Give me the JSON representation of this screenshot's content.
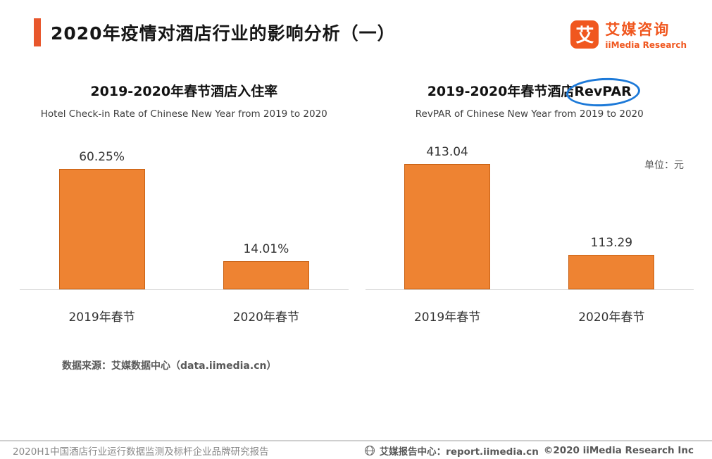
{
  "header": {
    "title": "2020年疫情对酒店行业的影响分析（一）",
    "logo": {
      "glyph": "艾",
      "brand_cn": "艾媒咨询",
      "brand_en": "iiMedia Research"
    }
  },
  "chart_data": [
    {
      "type": "bar",
      "title": "2019-2020年春节酒店入住率",
      "subtitle": "Hotel Check-in Rate of Chinese New Year from 2019 to 2020",
      "categories": [
        "2019年春节",
        "2020年春节"
      ],
      "values": [
        60.25,
        14.01
      ],
      "value_labels": [
        "60.25%",
        "14.01%"
      ],
      "ylabel": "",
      "xlabel": "",
      "unit": "",
      "ylim": [
        0,
        65
      ],
      "grid": false,
      "legend": false
    },
    {
      "type": "bar",
      "title": "2019-2020年春节酒店RevPAR",
      "title_prefix": "2019-2020年春节酒店",
      "title_highlight": "RevPAR",
      "subtitle": "RevPAR of Chinese New Year from 2019 to 2020",
      "categories": [
        "2019年春节",
        "2020年春节"
      ],
      "values": [
        413.04,
        113.29
      ],
      "value_labels": [
        "413.04",
        "113.29"
      ],
      "ylabel": "",
      "xlabel": "",
      "unit": "单位：元",
      "ylim": [
        0,
        430
      ],
      "grid": false,
      "legend": false
    }
  ],
  "source_note": "数据来源：艾媒数据中心（data.iimedia.cn）",
  "footer": {
    "left": "2020H1中国酒店行业运行数据监测及标杆企业品牌研究报告",
    "right_label": "艾媒报告中心：report.iimedia.cn",
    "right_copyright": "©2020  iiMedia Research Inc"
  },
  "colors": {
    "accent": "#E8572C",
    "logo_orange": "#F0571F",
    "bar_fill": "#EE8332",
    "bar_border": "#C96113",
    "highlight_ellipse": "#1C79D8"
  }
}
